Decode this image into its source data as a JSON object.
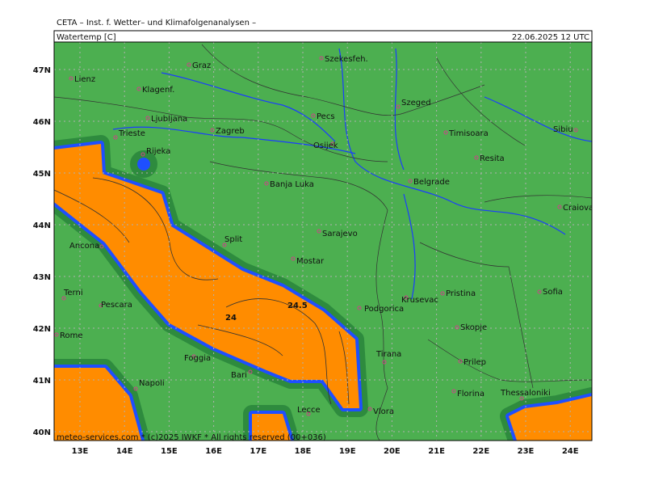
{
  "header": {
    "institute": "CETA – Inst. f. Wetter– und Klimafolgenanalysen –",
    "parameter": "Watertemp [C]",
    "datetime": "22.06.2025 12 UTC"
  },
  "map": {
    "lat_ticks": [
      {
        "value": 47,
        "label": "47N"
      },
      {
        "value": 46,
        "label": "46N"
      },
      {
        "value": 45,
        "label": "45N"
      },
      {
        "value": 44,
        "label": "44N"
      },
      {
        "value": 43,
        "label": "43N"
      },
      {
        "value": 42,
        "label": "42N"
      },
      {
        "value": 41,
        "label": "41N"
      },
      {
        "value": 40,
        "label": "40N"
      }
    ],
    "lon_ticks": [
      {
        "value": 13,
        "label": "13E"
      },
      {
        "value": 14,
        "label": "14E"
      },
      {
        "value": 15,
        "label": "15E"
      },
      {
        "value": 16,
        "label": "16E"
      },
      {
        "value": 17,
        "label": "17E"
      },
      {
        "value": 18,
        "label": "18E"
      },
      {
        "value": 19,
        "label": "19E"
      },
      {
        "value": 20,
        "label": "20E"
      },
      {
        "value": 21,
        "label": "21E"
      },
      {
        "value": 22,
        "label": "22E"
      },
      {
        "value": 23,
        "label": "23E"
      },
      {
        "value": 24,
        "label": "24E"
      }
    ],
    "cities": [
      "Lienz",
      "Graz",
      "Szekesfeh.",
      "Klagenf.",
      "Ljubljana",
      "Zagreb",
      "Pecs",
      "Szeged",
      "Osijek",
      "Timisoara",
      "Sibiu",
      "Trieste",
      "Rijeka",
      "Resita",
      "Banja Luka",
      "Belgrade",
      "Craiova",
      "Sarajevo",
      "Ancona",
      "Split",
      "Mostar",
      "Terni",
      "Pescara",
      "Krusevac",
      "Pristina",
      "Sofia",
      "Podgorica",
      "Skopje",
      "Rome",
      "Tirana",
      "Foggia",
      "Prilep",
      "Bari",
      "Napoli",
      "Florina",
      "Thessaloniki",
      "Lecce",
      "Vlora"
    ],
    "contour_labels": [
      "24",
      "24.5"
    ]
  },
  "footer": "meteo-services.com * (c)2025 IWKF * All rights reserved (00+036)"
}
